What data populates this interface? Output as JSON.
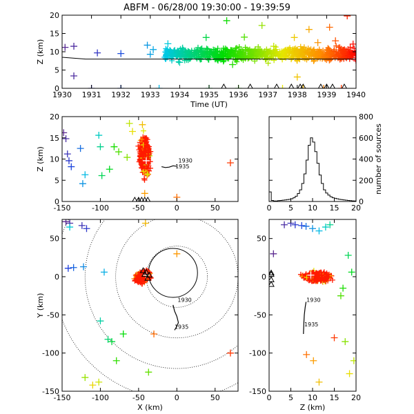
{
  "figure": {
    "title": "ABFM - 06/28/00 19:30:00 - 19:39:59",
    "colors": {
      "axes": "#000000",
      "red": "#ff1a00",
      "white_marker": "#ffffff",
      "rainbow_start": "#5a2a8f",
      "rainbow_end": "#ff0000"
    }
  },
  "chart_data": [
    {
      "id": "time_height",
      "type": "scatter",
      "title": "ABFM - 06/28/00 19:30:00 - 19:39:59",
      "xlabel": "Time (UT)",
      "ylabel": "Z (km)",
      "xlim": [
        1930,
        1940
      ],
      "ylim": [
        0,
        20
      ],
      "xticks": [
        1930,
        1931,
        1932,
        1933,
        1934,
        1935,
        1936,
        1937,
        1938,
        1939,
        1940
      ],
      "yticks": [
        0,
        5,
        10,
        15,
        20
      ],
      "color_by": "time",
      "sources": [
        [
          1930.1,
          11.2
        ],
        [
          1930.4,
          11.5
        ],
        [
          1930.4,
          3.4
        ],
        [
          1931.0,
          0.0
        ],
        [
          1931.2,
          9.7
        ],
        [
          1932.0,
          9.5
        ],
        [
          1932.0,
          0.0
        ],
        [
          1932.9,
          11.8
        ],
        [
          1933.0,
          9.3
        ],
        [
          1933.1,
          10.6
        ],
        [
          1933.3,
          0.0
        ],
        [
          1933.5,
          8.5
        ],
        [
          1933.6,
          12.2
        ],
        [
          1934.0,
          7.1
        ],
        [
          1934.1,
          11.0
        ],
        [
          1934.5,
          9.4
        ],
        [
          1934.7,
          8.0
        ],
        [
          1934.9,
          13.9
        ],
        [
          1935.0,
          0.0
        ],
        [
          1935.2,
          9.7
        ],
        [
          1935.6,
          18.5
        ],
        [
          1935.8,
          6.5
        ],
        [
          1936.0,
          0.0
        ],
        [
          1936.2,
          14.0
        ],
        [
          1936.4,
          9.0
        ],
        [
          1936.8,
          17.2
        ],
        [
          1937.2,
          11.5
        ],
        [
          1937.5,
          0.0
        ],
        [
          1937.9,
          13.9
        ],
        [
          1938.0,
          3.1
        ],
        [
          1938.2,
          0.0
        ],
        [
          1938.4,
          16.1
        ],
        [
          1938.7,
          12.5
        ],
        [
          1938.9,
          0.0
        ],
        [
          1939.1,
          16.7
        ],
        [
          1939.3,
          13.0
        ],
        [
          1939.5,
          0.0
        ],
        [
          1939.7,
          19.8
        ],
        [
          1939.9,
          12.1
        ]
      ],
      "dense_band": {
        "x_range": [
          1933.5,
          1940
        ],
        "z_center": 9.4,
        "z_spread": 1.4
      },
      "ground_triangles": [
        1935.5,
        1936.4,
        1937.3,
        1937.8,
        1938.1,
        1938.2,
        1938.8,
        1939.0,
        1939.2,
        1939.6
      ],
      "line": [
        [
          1930,
          8.5
        ],
        [
          1930.8,
          8.0
        ],
        [
          1940,
          8.0
        ]
      ]
    },
    {
      "id": "x_height",
      "type": "scatter",
      "xlabel": "",
      "ylabel": "Z (km)",
      "xlim": [
        -150,
        80
      ],
      "ylim": [
        0,
        20
      ],
      "xticks": [
        -150,
        -100,
        -50,
        0,
        50
      ],
      "yticks": [
        0,
        5,
        10,
        15,
        20
      ],
      "sources": [
        [
          -148,
          16.2
        ],
        [
          -145,
          14.8
        ],
        [
          -143,
          11.2
        ],
        [
          -141,
          9.6
        ],
        [
          -138,
          8.2
        ],
        [
          -126,
          12.5
        ],
        [
          -123,
          4.2
        ],
        [
          -120,
          6.3
        ],
        [
          -102,
          15.6
        ],
        [
          -100,
          12.9
        ],
        [
          -98,
          6.1
        ],
        [
          -88,
          7.6
        ],
        [
          -82,
          12.9
        ],
        [
          -76,
          11.7
        ],
        [
          -65,
          10.4
        ],
        [
          -62,
          18.4
        ],
        [
          -58,
          16.5
        ],
        [
          -45,
          18.1
        ],
        [
          -42,
          1.9
        ],
        [
          0,
          1.0
        ],
        [
          70,
          9.1
        ]
      ],
      "cluster": {
        "x_center": -42,
        "z_center": 11,
        "x_spread": 8,
        "z_spread": 4.5
      },
      "channel": [
        [
          -20,
          8.2
        ],
        [
          -15,
          8.0
        ],
        [
          -10,
          8.1
        ],
        [
          -5,
          8.4
        ],
        [
          0,
          8.3
        ]
      ],
      "channel_labels": [
        {
          "text": "1930",
          "x": 2,
          "z": 9.2
        },
        {
          "text": "1935",
          "x": -2,
          "z": 7.8
        }
      ],
      "ground_triangles": [
        -55,
        -50,
        -46,
        -42,
        -38
      ]
    },
    {
      "id": "height_histogram",
      "type": "line",
      "xlabel": "",
      "ylabel": "number of sources",
      "xlim": [
        0,
        20
      ],
      "ylim": [
        0,
        800
      ],
      "xticks": [
        0,
        5,
        10,
        15,
        20
      ],
      "yticks": [
        0,
        200,
        400,
        600,
        800
      ],
      "x": [
        0,
        0.5,
        1,
        1.5,
        2,
        2.5,
        3,
        3.5,
        4,
        4.5,
        5,
        5.5,
        6,
        6.5,
        7,
        7.5,
        8,
        8.5,
        9,
        9.5,
        10,
        10.5,
        11,
        11.5,
        12,
        12.5,
        13,
        13.5,
        14,
        14.5,
        15,
        15.5,
        16,
        16.5,
        17,
        17.5,
        18,
        18.5,
        19,
        19.5
      ],
      "values": [
        90,
        10,
        5,
        5,
        8,
        10,
        12,
        15,
        18,
        20,
        25,
        35,
        50,
        75,
        110,
        170,
        260,
        390,
        530,
        600,
        560,
        470,
        360,
        250,
        170,
        110,
        80,
        60,
        45,
        35,
        30,
        25,
        20,
        18,
        15,
        12,
        10,
        8,
        6,
        5
      ]
    },
    {
      "id": "plan_view",
      "type": "scatter",
      "xlabel": "X (km)",
      "ylabel": "Y (km)",
      "xlim": [
        -150,
        80
      ],
      "ylim": [
        -150,
        75
      ],
      "xticks": [
        -150,
        -100,
        -50,
        0,
        50
      ],
      "yticks": [
        -150,
        -100,
        -50,
        0,
        50
      ],
      "range_rings_km": [
        40,
        80,
        120,
        160
      ],
      "sources": [
        [
          -145,
          72
        ],
        [
          -140,
          70
        ],
        [
          -124,
          67
        ],
        [
          -118,
          63
        ],
        [
          -142,
          11
        ],
        [
          -135,
          12
        ],
        [
          -122,
          13
        ],
        [
          -95,
          6
        ],
        [
          -140,
          65
        ],
        [
          -100,
          -58
        ],
        [
          -90,
          -82
        ],
        [
          -85,
          -85
        ],
        [
          -70,
          -75
        ],
        [
          -79,
          -110
        ],
        [
          -37,
          -125
        ],
        [
          -120,
          -132
        ],
        [
          -102,
          -138
        ],
        [
          -110,
          -142
        ],
        [
          -41,
          70
        ],
        [
          0,
          30
        ],
        [
          -30,
          -75
        ],
        [
          70,
          -100
        ]
      ],
      "cluster": {
        "x_center": -45,
        "y_center": 0,
        "x_spread": 12,
        "y_spread": 10
      },
      "channel": [
        [
          -5,
          -37
        ],
        [
          -3,
          -45
        ],
        [
          0,
          -52
        ],
        [
          2,
          -60
        ],
        [
          0,
          -65
        ],
        [
          -3,
          -70
        ]
      ],
      "channel_labels": [
        {
          "text": "1930",
          "x": 1,
          "y": -33
        },
        {
          "text": "1935",
          "x": -3,
          "y": -68
        }
      ],
      "circle": {
        "x": -5,
        "y": 5,
        "r": 32
      },
      "ground_triangles": [
        [
          -42,
          3
        ],
        [
          -40,
          6
        ],
        [
          -44,
          8
        ],
        [
          -36,
          2
        ],
        [
          -38,
          -2
        ]
      ]
    },
    {
      "id": "height_y",
      "type": "scatter",
      "xlabel": "Z (km)",
      "ylabel": "",
      "xlim": [
        0,
        20
      ],
      "ylim": [
        -150,
        75
      ],
      "xticks": [
        0,
        5,
        10,
        15,
        20
      ],
      "yticks": [
        -150,
        -100,
        -50,
        0,
        50
      ],
      "sources": [
        [
          1,
          30
        ],
        [
          3.5,
          68
        ],
        [
          5,
          70
        ],
        [
          6,
          68
        ],
        [
          7.5,
          67
        ],
        [
          8.5,
          66
        ],
        [
          10,
          63
        ],
        [
          11.5,
          60
        ],
        [
          13,
          65
        ],
        [
          14,
          68
        ],
        [
          18.2,
          28
        ],
        [
          19,
          6
        ],
        [
          17,
          -15
        ],
        [
          16.5,
          -25
        ],
        [
          17.5,
          -85
        ],
        [
          19.5,
          -110
        ],
        [
          18.5,
          -127
        ],
        [
          11.5,
          -138
        ],
        [
          10.2,
          -110
        ],
        [
          8.6,
          -102
        ],
        [
          15,
          -80
        ]
      ],
      "cluster": {
        "x_center": 11,
        "y_center": 0,
        "x_spread": 3.5,
        "y_spread": 8
      },
      "channel": [
        [
          8.5,
          -33
        ],
        [
          8.3,
          -40
        ],
        [
          8.1,
          -50
        ],
        [
          8.0,
          -60
        ],
        [
          7.9,
          -75
        ]
      ],
      "channel_labels": [
        {
          "text": "1930",
          "x": 8.6,
          "y": -33
        },
        {
          "text": "1935",
          "x": 8.1,
          "y": -65
        }
      ],
      "ground_triangles": [
        [
          0,
          3
        ],
        [
          0,
          5
        ],
        [
          0,
          -4
        ],
        [
          0,
          -10
        ]
      ]
    }
  ]
}
